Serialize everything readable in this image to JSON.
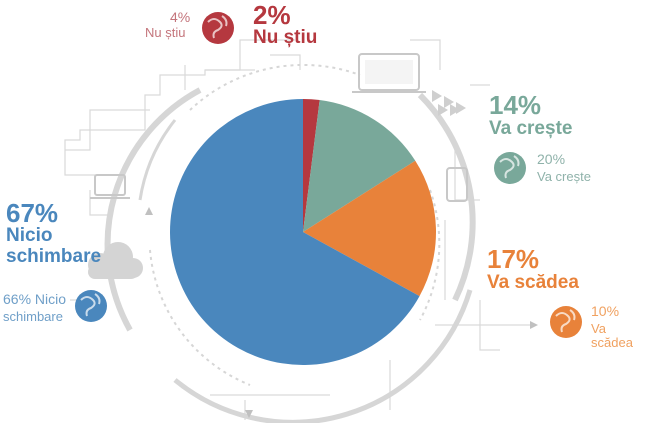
{
  "colors": {
    "nu_stiu": "#b5383f",
    "va_creste": "#79a89a",
    "va_scadea": "#e8823a",
    "nicio_schimbare": "#4a87bd",
    "decor": "#d6d6d6"
  },
  "chart_data": {
    "type": "pie",
    "title": "",
    "slices": [
      {
        "label": "Nu știu",
        "value": 2,
        "value_label": "2%",
        "color": "#b5383f"
      },
      {
        "label": "Va crește",
        "value": 14,
        "value_label": "14%",
        "color": "#79a89a"
      },
      {
        "label": "Va scădea",
        "value": 17,
        "value_label": "17%",
        "color": "#e8823a"
      },
      {
        "label": "Nicio schimbare",
        "value": 67,
        "value_label": "67%",
        "color": "#4a87bd"
      }
    ],
    "global_comparison": [
      {
        "label": "Nu știu",
        "value": 4,
        "value_label": "4%"
      },
      {
        "label": "Va crește",
        "value": 20,
        "value_label": "20%"
      },
      {
        "label": "Va scădea",
        "value": 10,
        "value_label": "10%"
      },
      {
        "label": "Nicio schimbare",
        "value": 66,
        "value_label": "66%"
      }
    ]
  },
  "labels": {
    "nu_stiu": {
      "pct": "2%",
      "name": "Nu știu"
    },
    "va_creste": {
      "pct": "14%",
      "name": "Va crește"
    },
    "va_scadea": {
      "pct": "17%",
      "name": "Va scădea"
    },
    "nicio": {
      "pct": "67%",
      "name1": "Nicio",
      "name2": "schimbare"
    }
  },
  "global_labels": {
    "nu_stiu": {
      "pct": "4%",
      "name": "Nu știu"
    },
    "va_creste": {
      "pct": "20%",
      "name": "Va crește"
    },
    "va_scadea": {
      "pct": "10%",
      "name": "Va scădea"
    },
    "nicio": {
      "pct_name": "66% Nicio",
      "name2": "schimbare"
    }
  },
  "icons": [
    "globe-icon",
    "laptop-icon",
    "tablet-icon",
    "phone-icon",
    "cloud-icon",
    "arrow-icon"
  ]
}
